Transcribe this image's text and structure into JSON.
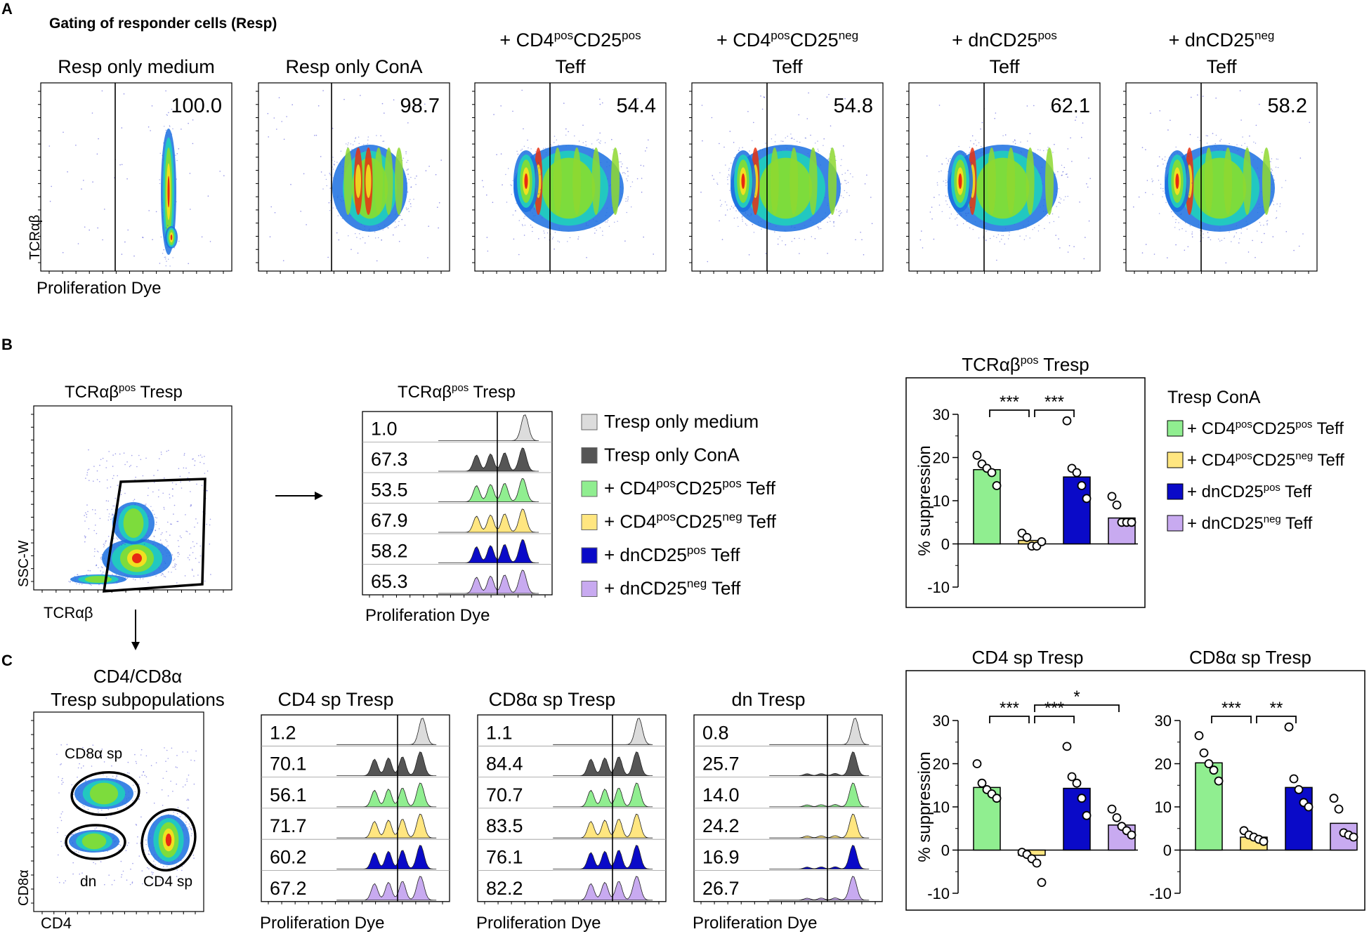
{
  "colors": {
    "medium": "#dcdcdc",
    "cona": "#555555",
    "cd4pos": "#90ee90",
    "cd4neg": "#ffe680",
    "dnpos": "#0a0ac8",
    "dnneg": "#c8aaf0"
  },
  "panelA": {
    "label": "A",
    "heading": "Gating of responder cells (Resp)",
    "ylabel": "TCRαβ",
    "xlabel": "Proliferation Dye",
    "plots": [
      {
        "title1": "Resp only medium",
        "title2": "",
        "pct": "100.0"
      },
      {
        "title1": "Resp only ConA",
        "title2": "",
        "pct": "98.7"
      },
      {
        "t_a": "+ CD4",
        "t_b": "pos",
        "t_c": "CD25",
        "t_d": "pos",
        "title2": "Teff",
        "pct": "54.4"
      },
      {
        "t_a": "+ CD4",
        "t_b": "pos",
        "t_c": "CD25",
        "t_d": "neg",
        "title2": "Teff",
        "pct": "54.8"
      },
      {
        "t_a": "+ dnCD25",
        "t_b": "pos",
        "title2": "Teff",
        "pct": "62.1"
      },
      {
        "t_a": "+ dnCD25",
        "t_b": "neg",
        "title2": "Teff",
        "pct": "58.2"
      }
    ]
  },
  "panelB": {
    "label": "B",
    "gate": {
      "title_a": "TCRαβ",
      "title_b": "pos",
      "title_c": " Tresp",
      "ylabel": "SSC-W",
      "xlabel": "TCRαβ"
    },
    "hist": {
      "title_a": "TCRαβ",
      "title_b": "pos",
      "title_c": " Tresp",
      "xlabel": "Proliferation Dye",
      "values": [
        "1.0",
        "67.3",
        "53.5",
        "67.9",
        "58.2",
        "65.3"
      ]
    },
    "legend": [
      {
        "a": "Tresp only medium"
      },
      {
        "a": "Tresp only ConA"
      },
      {
        "a": "+ CD4",
        "b": "pos",
        "c": "CD25",
        "d": "pos",
        "e": " Teff"
      },
      {
        "a": "+ CD4",
        "b": "pos",
        "c": "CD25",
        "d": "neg",
        "e": " Teff"
      },
      {
        "a": "+ dnCD25",
        "b": "pos",
        "e": " Teff"
      },
      {
        "a": "+ dnCD25",
        "b": "neg",
        "e": " Teff"
      }
    ]
  },
  "panelC": {
    "label": "C",
    "gate": {
      "title1": "CD4/CD8α",
      "title2": "Tresp subpopulations",
      "ylabel": "CD8α",
      "xlabel": "CD4",
      "pop_cd8": "CD8α sp",
      "pop_dn": "dn",
      "pop_cd4": "CD4 sp"
    },
    "hists": [
      {
        "title": "CD4 sp Tresp",
        "xlabel": "Proliferation Dye",
        "values": [
          "1.2",
          "70.1",
          "56.1",
          "71.7",
          "60.2",
          "67.2"
        ]
      },
      {
        "title": "CD8α sp Tresp",
        "xlabel": "Proliferation Dye",
        "values": [
          "1.1",
          "84.4",
          "70.7",
          "83.5",
          "76.1",
          "82.2"
        ]
      },
      {
        "title": "dn Tresp",
        "xlabel": "Proliferation Dye",
        "values": [
          "0.8",
          "25.7",
          "14.0",
          "24.2",
          "16.9",
          "26.7"
        ]
      }
    ]
  },
  "legendBar": {
    "title": "Tresp ConA",
    "items": [
      {
        "a": "+ CD4",
        "b": "pos",
        "c": "CD25",
        "d": "pos",
        "e": " Teff"
      },
      {
        "a": "+ CD4",
        "b": "pos",
        "c": "CD25",
        "d": "neg",
        "e": " Teff"
      },
      {
        "a": "+ dnCD25",
        "b": "pos",
        "e": " Teff"
      },
      {
        "a": "+ dnCD25",
        "b": "neg",
        "e": " Teff"
      }
    ]
  },
  "chart_data": [
    {
      "type": "bar",
      "title": "TCRαβpos Tresp",
      "title_a": "TCRαβ",
      "title_b": "pos",
      "title_c": " Tresp",
      "ylabel": "% suppression",
      "ylim": [
        -10,
        30
      ],
      "yticks": [
        "-10",
        "0",
        "10",
        "20",
        "30"
      ],
      "categories": [
        "+ CD4posCD25pos Teff",
        "+ CD4posCD25neg Teff",
        "+ dnCD25pos Teff",
        "+ dnCD25neg Teff"
      ],
      "values": [
        17.2,
        0.8,
        15.5,
        6.0
      ],
      "points": [
        [
          20.5,
          18.5,
          17.5,
          16.5,
          13.5
        ],
        [
          2.5,
          1.5,
          -0.5,
          -0.5,
          0.5
        ],
        [
          28.5,
          17.5,
          16.5,
          13.5,
          10.5
        ],
        [
          11.0,
          9.0,
          5.0,
          5.0,
          5.0
        ]
      ],
      "significance": [
        {
          "from": 0,
          "to": 1,
          "label": "***",
          "level": 1
        },
        {
          "from": 1,
          "to": 2,
          "label": "***",
          "level": 1
        }
      ]
    },
    {
      "type": "bar",
      "title": "CD4 sp Tresp",
      "ylabel": "% suppression",
      "ylim": [
        -10,
        30
      ],
      "yticks": [
        "-10",
        "0",
        "10",
        "20",
        "30"
      ],
      "categories": [
        "+ CD4posCD25pos Teff",
        "+ CD4posCD25neg Teff",
        "+ dnCD25pos Teff",
        "+ dnCD25neg Teff"
      ],
      "values": [
        14.5,
        -1.2,
        14.3,
        5.8
      ],
      "points": [
        [
          20.0,
          15.5,
          14.0,
          13.0,
          12.0
        ],
        [
          -0.5,
          -1.0,
          -2.0,
          -3.0,
          -7.5
        ],
        [
          24.0,
          17.0,
          15.5,
          12.0,
          8.0
        ],
        [
          9.5,
          7.5,
          5.5,
          4.5,
          3.5
        ]
      ],
      "significance": [
        {
          "from": 0,
          "to": 1,
          "label": "***",
          "level": 1
        },
        {
          "from": 1,
          "to": 2,
          "label": "***",
          "level": 1
        },
        {
          "from": 1,
          "to": 3,
          "label": "*",
          "level": 2
        }
      ]
    },
    {
      "type": "bar",
      "title": "CD8α sp Tresp",
      "ylabel": "",
      "ylim": [
        -10,
        30
      ],
      "yticks": [
        "-10",
        "0",
        "10",
        "20",
        "30"
      ],
      "categories": [
        "+ CD4posCD25pos Teff",
        "+ CD4posCD25neg Teff",
        "+ dnCD25pos Teff",
        "+ dnCD25neg Teff"
      ],
      "values": [
        20.2,
        3.0,
        14.5,
        6.2
      ],
      "points": [
        [
          26.5,
          22.5,
          20.0,
          18.5,
          16.0
        ],
        [
          4.5,
          3.5,
          3.0,
          2.5,
          2.0
        ],
        [
          28.5,
          16.5,
          14.0,
          11.0,
          10.0
        ],
        [
          12.0,
          9.5,
          4.0,
          3.5,
          3.0
        ]
      ],
      "significance": [
        {
          "from": 0,
          "to": 1,
          "label": "***",
          "level": 1
        },
        {
          "from": 1,
          "to": 2,
          "label": "**",
          "level": 1
        }
      ]
    }
  ]
}
